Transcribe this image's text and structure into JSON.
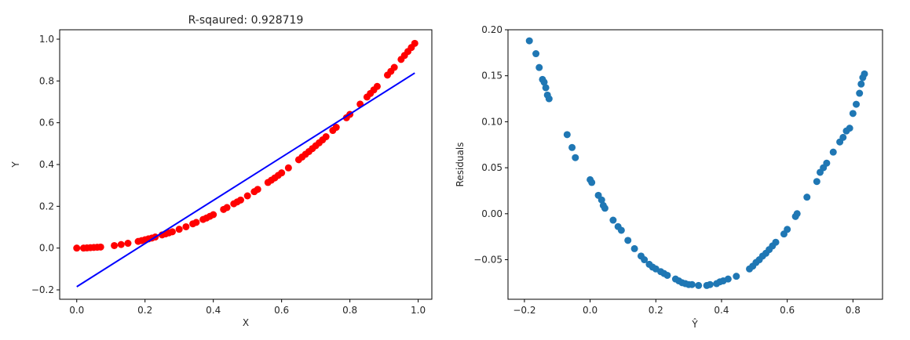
{
  "chart_data": [
    {
      "type": "scatter",
      "title": "R-sqaured: 0.928719",
      "xlabel": "X",
      "ylabel": "Y",
      "xlim": [
        -0.05,
        1.04
      ],
      "ylim": [
        -0.245,
        1.045
      ],
      "xticks": [
        0.0,
        0.2,
        0.4,
        0.6,
        0.8,
        1.0
      ],
      "xtick_labels": [
        "0.0",
        "0.2",
        "0.4",
        "0.6",
        "0.8",
        "1.0"
      ],
      "yticks": [
        -0.2,
        0.0,
        0.2,
        0.4,
        0.6,
        0.8,
        1.0
      ],
      "ytick_labels": [
        "−0.2",
        "0.0",
        "0.2",
        "0.4",
        "0.6",
        "0.8",
        "1.0"
      ],
      "grid": false,
      "series": [
        {
          "kind": "scatter",
          "color": "#ff0000",
          "x": [
            0.0,
            0.02,
            0.03,
            0.04,
            0.05,
            0.06,
            0.07,
            0.11,
            0.13,
            0.15,
            0.18,
            0.19,
            0.2,
            0.21,
            0.22,
            0.23,
            0.25,
            0.26,
            0.27,
            0.28,
            0.3,
            0.32,
            0.34,
            0.35,
            0.37,
            0.38,
            0.39,
            0.4,
            0.43,
            0.44,
            0.46,
            0.47,
            0.48,
            0.5,
            0.52,
            0.53,
            0.56,
            0.57,
            0.58,
            0.59,
            0.6,
            0.62,
            0.65,
            0.66,
            0.67,
            0.68,
            0.69,
            0.7,
            0.71,
            0.72,
            0.73,
            0.75,
            0.76,
            0.79,
            0.8,
            0.83,
            0.85,
            0.86,
            0.87,
            0.88,
            0.91,
            0.92,
            0.93,
            0.95,
            0.96,
            0.97,
            0.98,
            0.99
          ],
          "y": [
            0.0,
            0.0,
            0.001,
            0.002,
            0.003,
            0.004,
            0.005,
            0.012,
            0.017,
            0.023,
            0.032,
            0.036,
            0.04,
            0.044,
            0.048,
            0.053,
            0.063,
            0.068,
            0.073,
            0.078,
            0.09,
            0.102,
            0.116,
            0.123,
            0.137,
            0.144,
            0.152,
            0.16,
            0.185,
            0.194,
            0.212,
            0.221,
            0.23,
            0.25,
            0.27,
            0.281,
            0.314,
            0.325,
            0.336,
            0.348,
            0.36,
            0.384,
            0.423,
            0.436,
            0.449,
            0.462,
            0.476,
            0.49,
            0.504,
            0.518,
            0.533,
            0.563,
            0.578,
            0.624,
            0.64,
            0.689,
            0.723,
            0.74,
            0.757,
            0.774,
            0.828,
            0.846,
            0.865,
            0.903,
            0.922,
            0.941,
            0.96,
            0.98
          ]
        },
        {
          "kind": "line",
          "color": "#0000ff",
          "x": [
            0.0,
            0.99
          ],
          "y": [
            -0.185,
            0.838
          ]
        }
      ]
    },
    {
      "type": "scatter",
      "title": "",
      "xlabel": "Ŷ",
      "ylabel": "Residuals",
      "xlim": [
        -0.25,
        0.89
      ],
      "ylim": [
        -0.093,
        0.2
      ],
      "xticks": [
        -0.2,
        0.0,
        0.2,
        0.4,
        0.6,
        0.8
      ],
      "xtick_labels": [
        "−0.2",
        "0.0",
        "0.2",
        "0.4",
        "0.6",
        "0.8"
      ],
      "yticks": [
        -0.05,
        0.0,
        0.05,
        0.1,
        0.15,
        0.2
      ],
      "ytick_labels": [
        "−0.05",
        "0.00",
        "0.05",
        "0.10",
        "0.15",
        "0.20"
      ],
      "grid": false,
      "series": [
        {
          "kind": "scatter",
          "color": "#1f77b4",
          "x": [
            -0.185,
            -0.165,
            -0.155,
            -0.145,
            -0.14,
            -0.135,
            -0.13,
            -0.125,
            -0.07,
            -0.055,
            -0.045,
            0.0,
            0.005,
            0.025,
            0.035,
            0.04,
            0.045,
            0.07,
            0.085,
            0.095,
            0.115,
            0.135,
            0.155,
            0.165,
            0.18,
            0.19,
            0.2,
            0.215,
            0.225,
            0.235,
            0.26,
            0.27,
            0.28,
            0.29,
            0.3,
            0.31,
            0.33,
            0.355,
            0.365,
            0.385,
            0.395,
            0.405,
            0.42,
            0.445,
            0.485,
            0.495,
            0.505,
            0.515,
            0.525,
            0.535,
            0.545,
            0.555,
            0.565,
            0.59,
            0.6,
            0.625,
            0.63,
            0.66,
            0.69,
            0.7,
            0.71,
            0.72,
            0.74,
            0.76,
            0.77,
            0.78,
            0.79,
            0.8,
            0.81,
            0.82,
            0.825,
            0.83,
            0.835
          ],
          "y": [
            0.188,
            0.174,
            0.159,
            0.146,
            0.143,
            0.137,
            0.129,
            0.125,
            0.086,
            0.072,
            0.061,
            0.037,
            0.034,
            0.02,
            0.015,
            0.009,
            0.006,
            -0.007,
            -0.014,
            -0.018,
            -0.029,
            -0.038,
            -0.046,
            -0.05,
            -0.055,
            -0.058,
            -0.06,
            -0.063,
            -0.065,
            -0.067,
            -0.071,
            -0.073,
            -0.075,
            -0.076,
            -0.077,
            -0.077,
            -0.078,
            -0.078,
            -0.077,
            -0.076,
            -0.074,
            -0.073,
            -0.071,
            -0.068,
            -0.06,
            -0.057,
            -0.053,
            -0.05,
            -0.046,
            -0.043,
            -0.039,
            -0.035,
            -0.031,
            -0.022,
            -0.017,
            -0.003,
            0.0,
            0.018,
            0.035,
            0.045,
            0.05,
            0.055,
            0.067,
            0.078,
            0.083,
            0.09,
            0.093,
            0.109,
            0.119,
            0.131,
            0.141,
            0.148,
            0.152
          ]
        }
      ]
    }
  ]
}
